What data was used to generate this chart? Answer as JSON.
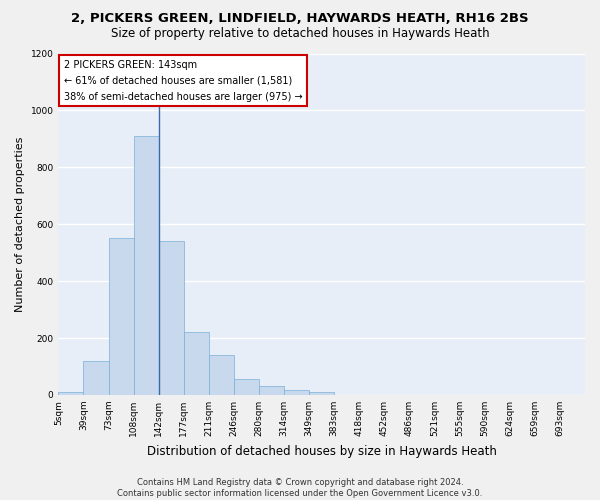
{
  "title": "2, PICKERS GREEN, LINDFIELD, HAYWARDS HEATH, RH16 2BS",
  "subtitle": "Size of property relative to detached houses in Haywards Heath",
  "xlabel": "Distribution of detached houses by size in Haywards Heath",
  "ylabel": "Number of detached properties",
  "bar_color": "#c9d9ed",
  "bar_edge_color": "#7aaed6",
  "background_color": "#e8eef8",
  "grid_color": "#ffffff",
  "bin_labels": [
    "5sqm",
    "39sqm",
    "73sqm",
    "108sqm",
    "142sqm",
    "177sqm",
    "211sqm",
    "246sqm",
    "280sqm",
    "314sqm",
    "349sqm",
    "383sqm",
    "418sqm",
    "452sqm",
    "486sqm",
    "521sqm",
    "555sqm",
    "590sqm",
    "624sqm",
    "659sqm",
    "693sqm"
  ],
  "bar_heights": [
    10,
    120,
    550,
    910,
    540,
    220,
    140,
    55,
    32,
    18,
    10,
    0,
    0,
    0,
    0,
    0,
    0,
    0,
    0,
    0,
    0
  ],
  "ylim": [
    0,
    1200
  ],
  "yticks": [
    0,
    200,
    400,
    600,
    800,
    1000,
    1200
  ],
  "property_label": "2 PICKERS GREEN: 143sqm",
  "annotation_line1": "← 61% of detached houses are smaller (1,581)",
  "annotation_line2": "38% of semi-detached houses are larger (975) →",
  "vline_color": "#3a6aad",
  "footer_line1": "Contains HM Land Registry data © Crown copyright and database right 2024.",
  "footer_line2": "Contains public sector information licensed under the Open Government Licence v3.0.",
  "title_fontsize": 9.5,
  "subtitle_fontsize": 8.5,
  "xlabel_fontsize": 8.5,
  "ylabel_fontsize": 8,
  "annotation_box_color": "#ffffff",
  "annotation_box_edge": "#cc0000",
  "footer_fontsize": 6,
  "tick_fontsize": 6.5
}
